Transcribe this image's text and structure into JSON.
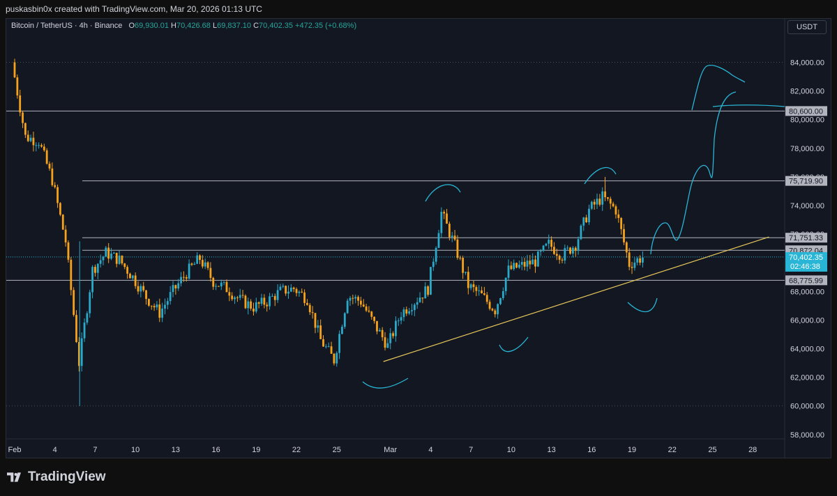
{
  "header": {
    "attribution": "puskasbin0x created with TradingView.com, Mar 20, 2026 01:13 UTC"
  },
  "legend": {
    "symbol": "Bitcoin / TetherUS · 4h · Binance",
    "open_label": "O",
    "open": "69,930.01",
    "high_label": "H",
    "high": "70,426.68",
    "low_label": "L",
    "low": "69,837.10",
    "close_label": "C",
    "close": "70,402.35",
    "change": "+472.35 (+0.68%)"
  },
  "currency_button": "USDT",
  "footer": {
    "brand": "TradingView"
  },
  "colors": {
    "bg": "#131722",
    "up": "#26a69a",
    "up_candle": "#2aa9c9",
    "down_candle": "#f7a21b",
    "grid": "#2a2e39",
    "axis_text": "#d1d4dc",
    "trendline": "#e8c85a",
    "drawing": "#29b6d6"
  },
  "chart_data": {
    "type": "candlestick",
    "title": "",
    "xlabel": "",
    "ylabel": "",
    "ylim": [
      57000,
      85500
    ],
    "y_ticks": [
      "84,000.00",
      "82,000.00",
      "80,000.00",
      "78,000.00",
      "76,000.00",
      "74,000.00",
      "72,000.00",
      "70,000.00",
      "68,000.00",
      "66,000.00",
      "64,000.00",
      "62,000.00",
      "60,000.00",
      "58,000.00"
    ],
    "x_ticks": [
      "Feb",
      "4",
      "7",
      "10",
      "13",
      "16",
      "19",
      "22",
      "25",
      "Mar",
      "4",
      "7",
      "10",
      "13",
      "16",
      "19",
      "22",
      "25",
      "28"
    ],
    "horizontal_levels": [
      {
        "value": 80600,
        "label": "80,600.00"
      },
      {
        "value": 75719.9,
        "label": "75,719.90"
      },
      {
        "value": 71751.33,
        "label": "71,751.33"
      },
      {
        "value": 70872.04,
        "label": "70,872.04"
      },
      {
        "value": 68775.99,
        "label": "68,775.99"
      }
    ],
    "price_label": {
      "value": 70402.35,
      "label": "70,402.35",
      "countdown": "02:46:38"
    },
    "trendline": {
      "from": [
        "Mar 1",
        63100
      ],
      "to": [
        "Mar 29",
        71800
      ]
    },
    "price_path": [
      [
        "Feb 1",
        84000
      ],
      [
        "Feb 2",
        78800
      ],
      [
        "Feb 3",
        78500
      ],
      [
        "Feb 4",
        75800
      ],
      [
        "Feb 5",
        71500
      ],
      [
        "Feb 6",
        63000
      ],
      [
        "Feb 7",
        69500
      ],
      [
        "Feb 8",
        70700
      ],
      [
        "Feb 9",
        70200
      ],
      [
        "Feb 10",
        69000
      ],
      [
        "Feb 11",
        67600
      ],
      [
        "Feb 12",
        66500
      ],
      [
        "Feb 13",
        68000
      ],
      [
        "Feb 14",
        69300
      ],
      [
        "Feb 15",
        70300
      ],
      [
        "Feb 16",
        68700
      ],
      [
        "Feb 17",
        68200
      ],
      [
        "Feb 18",
        67400
      ],
      [
        "Feb 19",
        66900
      ],
      [
        "Feb 20",
        67300
      ],
      [
        "Feb 21",
        68000
      ],
      [
        "Feb 22",
        68200
      ],
      [
        "Feb 23",
        67500
      ],
      [
        "Feb 24",
        64600
      ],
      [
        "Feb 25",
        63200
      ],
      [
        "Feb 26",
        67700
      ],
      [
        "Feb 27",
        67300
      ],
      [
        "Feb 28",
        65700
      ],
      [
        "Mar 1",
        64200
      ],
      [
        "Mar 2",
        66500
      ],
      [
        "Mar 3",
        67300
      ],
      [
        "Mar 4",
        68200
      ],
      [
        "Mar 5",
        73500
      ],
      [
        "Mar 6",
        71200
      ],
      [
        "Mar 7",
        68400
      ],
      [
        "Mar 8",
        67700
      ],
      [
        "Mar 9",
        66700
      ],
      [
        "Mar 10",
        69500
      ],
      [
        "Mar 11",
        69800
      ],
      [
        "Mar 12",
        70100
      ],
      [
        "Mar 13",
        71300
      ],
      [
        "Mar 14",
        70500
      ],
      [
        "Mar 15",
        71300
      ],
      [
        "Mar 16",
        73700
      ],
      [
        "Mar 17",
        74600
      ],
      [
        "Mar 18",
        73700
      ],
      [
        "Mar 19",
        69900
      ],
      [
        "Mar 20",
        70402
      ]
    ]
  }
}
